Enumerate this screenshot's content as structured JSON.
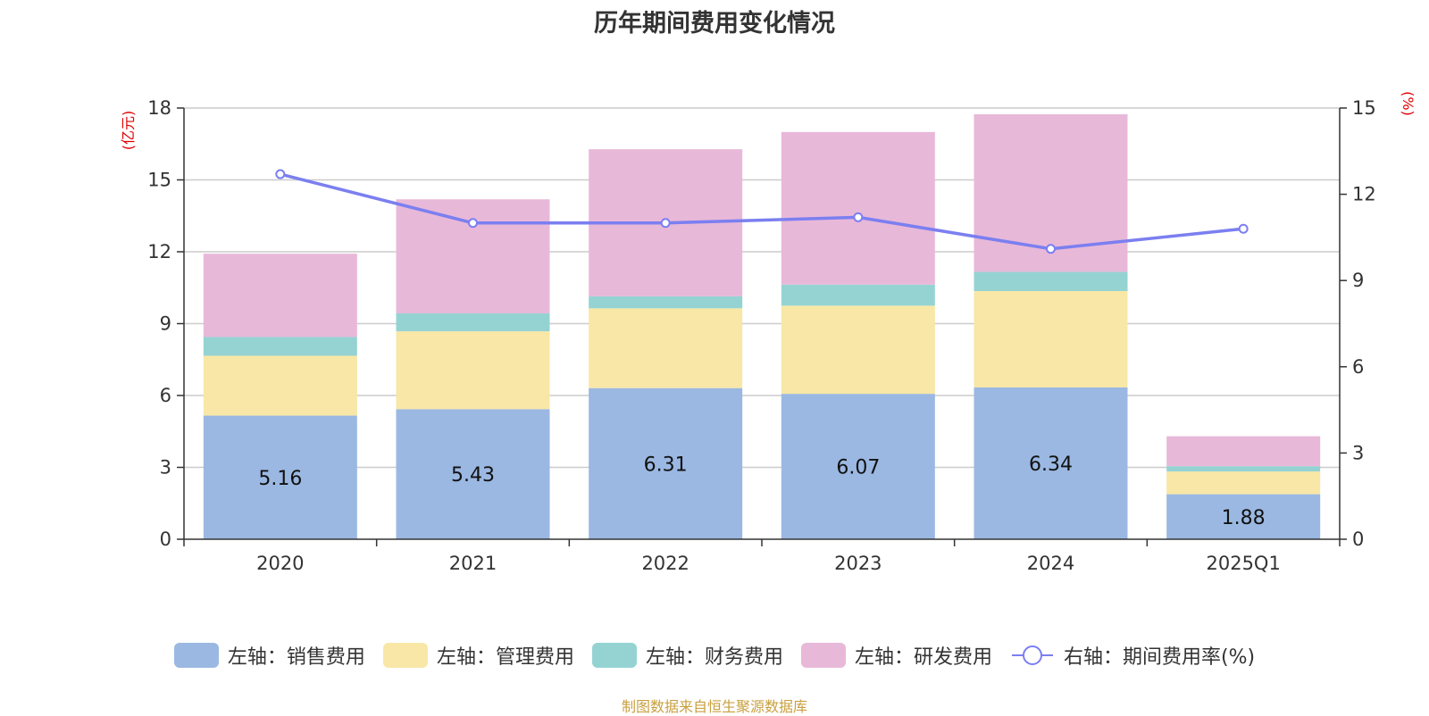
{
  "chart_data": {
    "type": "bar",
    "stacked": true,
    "title": "历年期间费用变化情况",
    "categories": [
      "2020",
      "2021",
      "2022",
      "2023",
      "2024",
      "2025Q1"
    ],
    "left_axis": {
      "unit": "(亿元)",
      "ylim": [
        0,
        18
      ],
      "ticks": [
        "0",
        "3",
        "6",
        "9",
        "12",
        "15",
        "18"
      ]
    },
    "right_axis": {
      "unit": "(%)",
      "ylim": [
        0,
        15
      ],
      "ticks": [
        "0",
        "3",
        "6",
        "9",
        "12",
        "15"
      ]
    },
    "grid": true,
    "legend_position": "bottom",
    "series": [
      {
        "name": "左轴：销售费用",
        "axis": "left",
        "type": "bar",
        "color": "#9bb8e2",
        "values": [
          5.16,
          5.43,
          6.31,
          6.07,
          6.34,
          1.88
        ],
        "labels": [
          "5.16",
          "5.43",
          "6.31",
          "6.07",
          "6.34",
          "1.88"
        ]
      },
      {
        "name": "左轴：管理费用",
        "axis": "left",
        "type": "bar",
        "color": "#f8e7a6",
        "values": [
          2.5,
          3.25,
          3.33,
          3.68,
          4.02,
          0.95
        ]
      },
      {
        "name": "左轴：财务费用",
        "axis": "left",
        "type": "bar",
        "color": "#95d3d3",
        "values": [
          0.78,
          0.75,
          0.5,
          0.88,
          0.8,
          0.22
        ]
      },
      {
        "name": "左轴：研发费用",
        "axis": "left",
        "type": "bar",
        "color": "#e8b8d9",
        "values": [
          3.48,
          4.76,
          6.14,
          6.37,
          6.58,
          1.25
        ]
      },
      {
        "name": "右轴：期间费用率(%)",
        "axis": "right",
        "type": "line",
        "color": "#7b7ff0",
        "values": [
          12.7,
          11.0,
          11.0,
          11.2,
          10.1,
          10.8
        ]
      }
    ]
  },
  "footer": {
    "source": "制图数据来自恒生聚源数据库"
  }
}
